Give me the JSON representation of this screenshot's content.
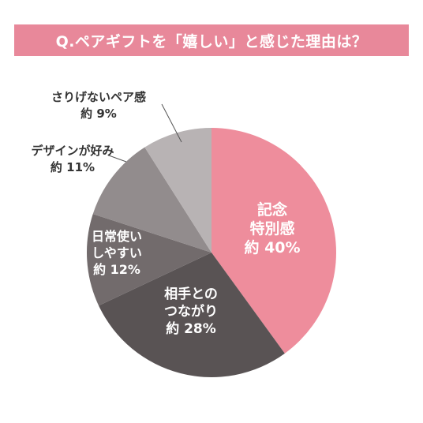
{
  "title": "Q.ペアギフトを「嬉しい」と感じた理由は？",
  "chart_data": {
    "type": "pie",
    "start": "top",
    "direction": "clockwise",
    "slices": [
      {
        "name_lines": [
          "記念",
          "特別感"
        ],
        "value_label": "約 40%",
        "value": 40,
        "color": "#ee8d9c"
      },
      {
        "name_lines": [
          "相手との",
          "つながり"
        ],
        "value_label": "約 28%",
        "value": 28,
        "color": "#595354"
      },
      {
        "name_lines": [
          "日常使い",
          "しやすい"
        ],
        "value_label": "約 12%",
        "value": 12,
        "color": "#726b6c"
      },
      {
        "name_lines": [
          "デザインが好み"
        ],
        "value_label": "約 11%",
        "value": 11,
        "color": "#928c8d"
      },
      {
        "name_lines": [
          "さりげないペア感"
        ],
        "value_label": "約 9%",
        "value": 9,
        "color": "#b8b3b4"
      }
    ]
  }
}
